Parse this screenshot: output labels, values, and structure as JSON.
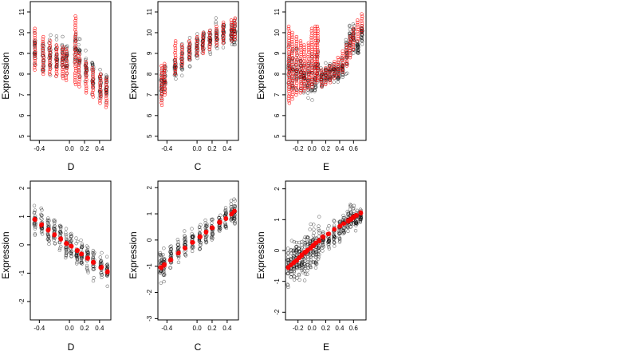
{
  "chart_data": [
    {
      "type": "scatter",
      "xlabel": "D",
      "ylabel": "Expression",
      "xlim": [
        -0.52,
        0.55
      ],
      "ylim": [
        4.8,
        11.5
      ],
      "xticks": [
        "-0.4",
        "0.0",
        "0.2",
        "0.4"
      ],
      "xtick_values": [
        -0.4,
        0.0,
        0.2,
        0.4
      ],
      "yticks": [
        "5",
        "6",
        "7",
        "8",
        "9",
        "10",
        "11"
      ],
      "ytick_values": [
        5,
        6,
        7,
        8,
        9,
        10,
        11
      ],
      "groups": [
        -0.46,
        -0.35,
        -0.26,
        -0.17,
        -0.09,
        -0.04,
        0.08,
        0.13,
        0.22,
        0.31,
        0.41,
        0.49
      ],
      "groups_note": "",
      "observed": {
        "color": "#000000",
        "level": [
          9.1,
          8.8,
          8.9,
          8.9,
          8.8,
          8.7,
          9.4,
          8.8,
          8.3,
          8.0,
          7.5,
          7.4
        ],
        "spread": [
          1.0,
          1.0,
          1.1,
          1.1,
          1.1,
          1.0,
          1.0,
          1.1,
          1.0,
          1.1,
          1.1,
          1.0
        ]
      },
      "fitted": {
        "color": "#ff0000",
        "mode": "band",
        "bands": [
          [
            [
              8.2,
              10.2
            ]
          ],
          [
            [
              8.0,
              9.8
            ]
          ],
          [
            [
              8.0,
              9.6
            ]
          ],
          [
            [
              7.9,
              9.4
            ]
          ],
          [
            [
              7.8,
              9.3
            ]
          ],
          [
            [
              7.7,
              9.2
            ]
          ],
          [
            [
              7.5,
              10.8
            ]
          ],
          [
            [
              7.4,
              9.0
            ]
          ],
          [
            [
              7.1,
              8.6
            ]
          ],
          [
            [
              6.9,
              8.3
            ]
          ],
          [
            [
              6.6,
              8.0
            ]
          ],
          [
            [
              6.4,
              7.8
            ]
          ]
        ]
      }
    },
    {
      "type": "scatter",
      "xlabel": "C",
      "ylabel": "Expression",
      "xlim": [
        -0.52,
        0.55
      ],
      "ylim": [
        4.8,
        11.5
      ],
      "xticks": [
        "-0.4",
        "0.0",
        "0.2",
        "0.4"
      ],
      "xtick_values": [
        -0.4,
        0.0,
        0.2,
        0.4
      ],
      "yticks": [
        "5",
        "6",
        "7",
        "8",
        "9",
        "10",
        "11"
      ],
      "ytick_values": [
        5,
        6,
        7,
        8,
        9,
        10,
        11
      ],
      "groups": [
        -0.47,
        -0.43,
        -0.29,
        -0.2,
        -0.1,
        0.0,
        0.08,
        0.17,
        0.26,
        0.35,
        0.46,
        0.5
      ],
      "groups_note": "",
      "observed": {
        "color": "#000000",
        "level": [
          7.5,
          7.8,
          8.3,
          8.7,
          9.0,
          9.3,
          9.4,
          9.6,
          9.8,
          9.9,
          10.0,
          10.0
        ],
        "spread": [
          1.0,
          0.9,
          0.9,
          0.9,
          0.8,
          0.8,
          0.9,
          0.8,
          0.8,
          0.8,
          0.8,
          0.9
        ]
      },
      "fitted": {
        "color": "#ff0000",
        "mode": "band",
        "bands": [
          [
            [
              6.5,
              8.4
            ]
          ],
          [
            [
              7.0,
              8.5
            ]
          ],
          [
            [
              8.0,
              9.6
            ]
          ],
          [
            [
              8.4,
              9.4
            ]
          ],
          [
            [
              8.7,
              9.6
            ]
          ],
          [
            [
              8.9,
              9.8
            ]
          ],
          [
            [
              9.0,
              10.0
            ]
          ],
          [
            [
              9.2,
              10.1
            ]
          ],
          [
            [
              9.4,
              10.3
            ]
          ],
          [
            [
              9.5,
              10.5
            ]
          ],
          [
            [
              9.6,
              10.6
            ]
          ],
          [
            [
              9.7,
              10.7
            ]
          ]
        ]
      }
    },
    {
      "type": "scatter",
      "xlabel": "E",
      "ylabel": "Expression",
      "xlim": [
        -0.38,
        0.78
      ],
      "ylim": [
        4.8,
        11.5
      ],
      "xticks": [
        "-0.2",
        "0.0",
        "0.2",
        "0.4",
        "0.6"
      ],
      "xtick_values": [
        -0.2,
        0.0,
        0.2,
        0.4,
        0.6
      ],
      "yticks": [
        "5",
        "6",
        "7",
        "8",
        "9",
        "10",
        "11"
      ],
      "ytick_values": [
        5,
        6,
        7,
        8,
        9,
        10,
        11
      ],
      "groups": [
        -0.33,
        -0.28,
        -0.22,
        -0.16,
        -0.11,
        -0.05,
        0.0,
        0.05,
        0.08,
        0.14,
        0.2,
        0.26,
        0.32,
        0.38,
        0.44,
        0.5,
        0.55,
        0.6,
        0.66,
        0.72
      ],
      "groups_note": "",
      "observed": {
        "color": "#000000",
        "level": [
          8.3,
          8.2,
          8.1,
          8.0,
          7.9,
          7.9,
          7.8,
          7.8,
          8.5,
          7.9,
          8.0,
          8.0,
          8.1,
          8.0,
          8.3,
          9.0,
          9.6,
          9.8,
          9.3,
          10.0
        ],
        "spread": [
          1.4,
          1.3,
          1.3,
          1.3,
          1.2,
          1.2,
          1.2,
          1.2,
          1.4,
          0.6,
          0.6,
          0.6,
          0.6,
          0.6,
          0.6,
          1.0,
          0.9,
          0.8,
          0.6,
          0.6
        ]
      },
      "fitted": {
        "color": "#ff0000",
        "mode": "band",
        "bands": [
          [
            [
              6.6,
              10.3
            ]
          ],
          [
            [
              6.8,
              10.0
            ]
          ],
          [
            [
              7.0,
              9.8
            ]
          ],
          [
            [
              7.1,
              9.6
            ]
          ],
          [
            [
              7.2,
              9.4
            ]
          ],
          [
            [
              7.3,
              9.5
            ]
          ],
          [
            [
              7.4,
              10.2
            ]
          ],
          [
            [
              7.6,
              10.3
            ]
          ],
          [
            [
              7.7,
              10.3
            ]
          ],
          [
            [
              7.4,
              8.2
            ]
          ],
          [
            [
              7.5,
              8.3
            ]
          ],
          [
            [
              7.6,
              8.4
            ]
          ],
          [
            [
              7.8,
              8.6
            ]
          ],
          [
            [
              7.9,
              8.8
            ]
          ],
          [
            [
              8.1,
              9.1
            ]
          ],
          [
            [
              8.4,
              9.4
            ]
          ],
          [
            [
              8.8,
              9.8
            ]
          ],
          [
            [
              9.2,
              10.2
            ]
          ],
          [
            [
              9.6,
              10.6
            ]
          ],
          [
            [
              10.0,
              10.9
            ]
          ]
        ]
      }
    },
    {
      "type": "scatter",
      "xlabel": "D",
      "ylabel": "Expression",
      "xlim": [
        -0.52,
        0.55
      ],
      "ylim": [
        -2.65,
        2.25
      ],
      "xticks": [
        "-0.4",
        "0.0",
        "0.2",
        "0.4"
      ],
      "xtick_values": [
        -0.4,
        0.0,
        0.2,
        0.4
      ],
      "yticks": [
        "-2",
        "-1",
        "0",
        "1",
        "2"
      ],
      "ytick_values": [
        -2,
        -1,
        0,
        1,
        2
      ],
      "groups": [
        -0.46,
        -0.37,
        -0.28,
        -0.2,
        -0.12,
        -0.04,
        0.02,
        0.1,
        0.16,
        0.24,
        0.32,
        0.42,
        0.5
      ],
      "groups_note": "",
      "observed": {
        "color": "#000000",
        "level": [
          0.9,
          0.75,
          0.55,
          0.4,
          0.3,
          0.1,
          0.0,
          -0.2,
          -0.3,
          -0.45,
          -0.6,
          -0.8,
          -0.95
        ],
        "spread": [
          0.55,
          0.6,
          0.6,
          0.6,
          0.6,
          0.6,
          0.6,
          0.6,
          0.6,
          0.6,
          0.6,
          0.6,
          0.5
        ]
      },
      "fitted": {
        "color": "#ff0000",
        "mode": "points",
        "points": [
          [
            -0.46,
            0.9
          ],
          [
            -0.37,
            0.7
          ],
          [
            -0.28,
            0.52
          ],
          [
            -0.2,
            0.36
          ],
          [
            -0.12,
            0.2
          ],
          [
            -0.04,
            0.05
          ],
          [
            0.02,
            -0.05
          ],
          [
            0.1,
            -0.2
          ],
          [
            0.16,
            -0.32
          ],
          [
            0.24,
            -0.47
          ],
          [
            0.32,
            -0.62
          ],
          [
            0.42,
            -0.8
          ],
          [
            0.5,
            -0.95
          ]
        ]
      }
    },
    {
      "type": "scatter",
      "xlabel": "C",
      "ylabel": "Expression",
      "xlim": [
        -0.52,
        0.55
      ],
      "ylim": [
        -3.05,
        2.25
      ],
      "xticks": [
        "-0.4",
        "0.0",
        "0.2",
        "0.4"
      ],
      "xtick_values": [
        -0.4,
        0.0,
        0.2,
        0.4
      ],
      "yticks": [
        "-3",
        "-2",
        "-1",
        "0",
        "1",
        "2"
      ],
      "ytick_values": [
        -3,
        -2,
        -1,
        0,
        1,
        2
      ],
      "groups": [
        -0.48,
        -0.44,
        -0.35,
        -0.25,
        -0.16,
        -0.06,
        0.04,
        0.12,
        0.2,
        0.3,
        0.38,
        0.46,
        0.5
      ],
      "groups_note": "",
      "observed": {
        "color": "#000000",
        "level": [
          -1.0,
          -0.9,
          -0.6,
          -0.4,
          -0.2,
          0.0,
          0.1,
          0.3,
          0.4,
          0.6,
          0.8,
          1.0,
          1.1
        ],
        "spread": [
          0.7,
          0.7,
          0.6,
          0.6,
          0.6,
          0.6,
          0.6,
          0.6,
          0.6,
          0.6,
          0.6,
          0.6,
          0.6
        ]
      },
      "fitted": {
        "color": "#ff0000",
        "mode": "points",
        "points": [
          [
            -0.48,
            -1.05
          ],
          [
            -0.44,
            -0.95
          ],
          [
            -0.35,
            -0.75
          ],
          [
            -0.25,
            -0.5
          ],
          [
            -0.16,
            -0.3
          ],
          [
            -0.06,
            -0.08
          ],
          [
            0.04,
            0.12
          ],
          [
            0.12,
            0.3
          ],
          [
            0.2,
            0.47
          ],
          [
            0.3,
            0.67
          ],
          [
            0.38,
            0.83
          ],
          [
            0.46,
            1.0
          ],
          [
            0.5,
            1.1
          ]
        ]
      }
    },
    {
      "type": "scatter",
      "xlabel": "E",
      "ylabel": "Expression",
      "xlim": [
        -0.38,
        0.78
      ],
      "ylim": [
        -2.25,
        2.25
      ],
      "xticks": [
        "-0.2",
        "0.0",
        "0.2",
        "0.4",
        "0.6"
      ],
      "xtick_values": [
        -0.2,
        0.0,
        0.2,
        0.4,
        0.6
      ],
      "yticks": [
        "-2",
        "-1",
        "0",
        "1",
        "2"
      ],
      "ytick_values": [
        -2,
        -1,
        0,
        1,
        2
      ],
      "groups": [
        -0.34,
        -0.3,
        -0.26,
        -0.22,
        -0.18,
        -0.14,
        -0.1,
        -0.06,
        -0.02,
        0.02,
        0.06,
        0.1,
        0.16,
        0.24,
        0.32,
        0.4,
        0.46,
        0.52,
        0.56,
        0.6,
        0.64,
        0.7
      ],
      "groups_note": "",
      "observed": {
        "color": "#000000",
        "level": [
          -0.5,
          -0.4,
          -0.35,
          -0.3,
          -0.25,
          -0.2,
          -0.15,
          -0.1,
          0.0,
          0.05,
          0.1,
          0.2,
          0.3,
          0.4,
          0.55,
          0.7,
          0.85,
          1.0,
          1.05,
          1.1,
          1.0,
          1.1
        ],
        "spread": [
          0.8,
          0.8,
          0.8,
          0.8,
          0.8,
          0.8,
          0.8,
          0.8,
          0.8,
          0.8,
          0.8,
          0.8,
          0.5,
          0.5,
          0.5,
          0.5,
          0.5,
          0.5,
          0.5,
          0.4,
          0.4,
          0.4
        ]
      },
      "fitted": {
        "color": "#ff0000",
        "mode": "points",
        "points": [
          [
            -0.34,
            -0.55
          ],
          [
            -0.3,
            -0.47
          ],
          [
            -0.26,
            -0.39
          ],
          [
            -0.22,
            -0.31
          ],
          [
            -0.18,
            -0.23
          ],
          [
            -0.14,
            -0.15
          ],
          [
            -0.1,
            -0.07
          ],
          [
            -0.06,
            0.0
          ],
          [
            -0.02,
            0.08
          ],
          [
            0.02,
            0.16
          ],
          [
            0.06,
            0.24
          ],
          [
            0.1,
            0.32
          ],
          [
            0.16,
            0.43
          ],
          [
            0.24,
            0.55
          ],
          [
            0.32,
            0.67
          ],
          [
            0.4,
            0.78
          ],
          [
            0.46,
            0.87
          ],
          [
            0.52,
            0.96
          ],
          [
            0.56,
            1.02
          ],
          [
            0.6,
            1.08
          ],
          [
            0.64,
            1.13
          ],
          [
            0.7,
            1.22
          ]
        ]
      }
    }
  ]
}
